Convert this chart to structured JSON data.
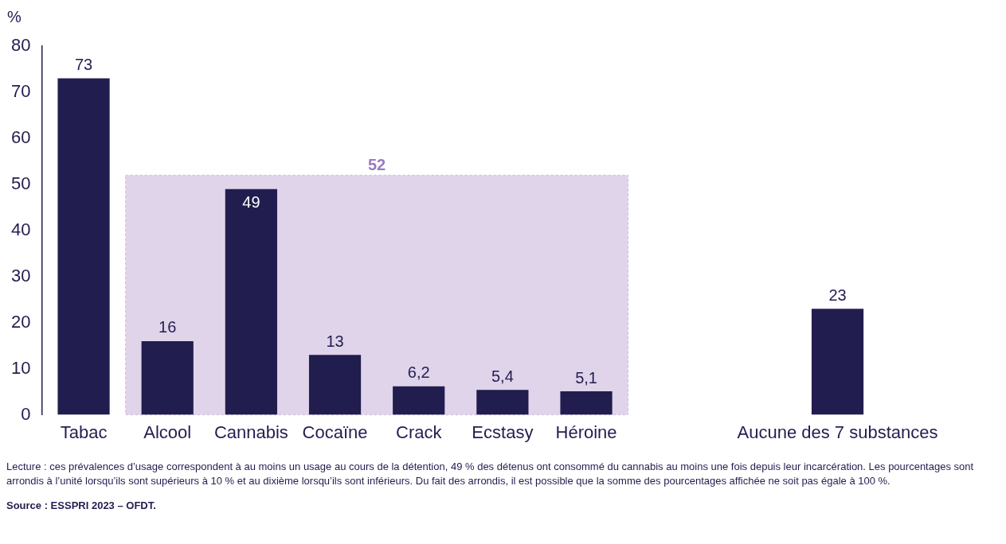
{
  "chart_data": {
    "type": "bar",
    "ylabel": "%",
    "categories": [
      "Tabac",
      "Alcool",
      "Cannabis",
      "Cocaïne",
      "Crack",
      "Ecstasy",
      "Héroine",
      null,
      null,
      "Aucune des 7 substances"
    ],
    "values": [
      73,
      16,
      49,
      13,
      6.2,
      5.4,
      5.1,
      null,
      null,
      23
    ],
    "value_labels": [
      "73",
      "16",
      "49",
      "13",
      "6,2",
      "5,4",
      "5,1",
      null,
      null,
      "23"
    ],
    "color": "#221d4f",
    "ylim": [
      0,
      80
    ],
    "yticks": [
      0,
      10,
      20,
      30,
      40,
      50,
      60,
      70,
      80
    ],
    "grid": false,
    "legend": false,
    "bands": [
      {
        "axis": "x",
        "from": "Alcool",
        "to": "Héroine",
        "color": "#e0d4ea"
      }
    ],
    "annotations": [
      {
        "text": "52",
        "y": 52
      },
      "Lecture : ces prévalences d’usage correspondent à au moins un usage au cours de la détention, 49 % des détenus ont consommé du cannabis au moins une fois depuis leur incarcération. Les pourcentages sont arrondis à l’unité lorsqu’ils sont supérieurs à 10 % et au dixième lorsqu’ils sont inférieurs. Du fait des arrondis, il est possible que la somme des pourcentages affichée ne soit pas égale à 100 %.",
      "Source : ESSPRI 2023 – OFDT."
    ]
  }
}
